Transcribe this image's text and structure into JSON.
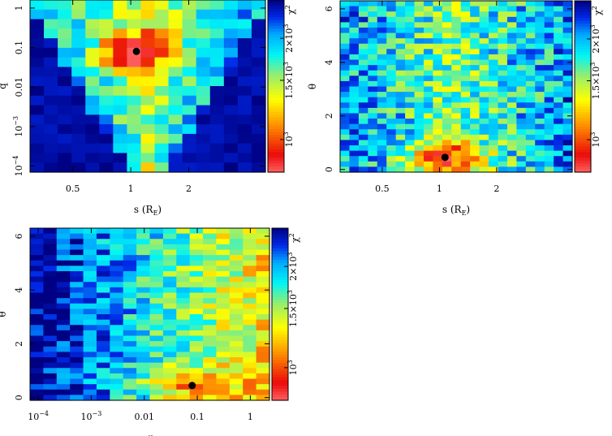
{
  "chart_data": [
    {
      "type": "heatmap",
      "title": "",
      "xlabel": "s (R_E)",
      "ylabel": "q",
      "x_scale": "log",
      "y_scale": "log",
      "xlim": [
        0.3,
        5.0
      ],
      "ylim": [
        7e-05,
        1.6
      ],
      "x_ticks": [
        {
          "v": 0.5,
          "label": "0.5"
        },
        {
          "v": 1,
          "label": "1"
        },
        {
          "v": 2,
          "label": "2"
        }
      ],
      "y_ticks": [
        {
          "v": 0.0001,
          "label": "10^-4"
        },
        {
          "v": 0.001,
          "label": "10^-3"
        },
        {
          "v": 0.01,
          "label": "0.01"
        },
        {
          "v": 0.1,
          "label": "0.1"
        },
        {
          "v": 1,
          "label": "1"
        }
      ],
      "colorbar": {
        "label": "χ²",
        "scale": "log",
        "range": [
          800,
          2600
        ],
        "ticks": [
          {
            "v": 1000,
            "label": "10^3"
          },
          {
            "v": 1500,
            "label": "1.5×10^3"
          },
          {
            "v": 2000,
            "label": "2×10^3"
          }
        ]
      },
      "best_fit": {
        "x": 1.07,
        "y": 0.08
      },
      "pattern": "v",
      "grid_size": [
        17,
        18
      ],
      "seed": 11
    },
    {
      "type": "heatmap",
      "title": "",
      "xlabel": "s (R_E)",
      "ylabel": "θ",
      "x_scale": "log",
      "y_scale": "linear",
      "xlim": [
        0.3,
        5.0
      ],
      "ylim": [
        -0.1,
        6.3
      ],
      "x_ticks": [
        {
          "v": 0.5,
          "label": "0.5"
        },
        {
          "v": 1,
          "label": "1"
        },
        {
          "v": 2,
          "label": "2"
        }
      ],
      "y_ticks": [
        {
          "v": 0,
          "label": "0"
        },
        {
          "v": 2,
          "label": "2"
        },
        {
          "v": 4,
          "label": "4"
        },
        {
          "v": 6,
          "label": "6"
        }
      ],
      "colorbar": {
        "label": "χ²",
        "scale": "log",
        "range": [
          800,
          2600
        ],
        "ticks": [
          {
            "v": 1000,
            "label": "10^3"
          },
          {
            "v": 1500,
            "label": "1.5×10^3"
          },
          {
            "v": 2000,
            "label": "2×10^3"
          }
        ]
      },
      "best_fit": {
        "x": 1.07,
        "y": 0.45
      },
      "pattern": "centercol",
      "grid_size": [
        25,
        32
      ],
      "seed": 23
    },
    {
      "type": "heatmap",
      "title": "",
      "xlabel": "q",
      "ylabel": "θ",
      "x_scale": "log",
      "y_scale": "linear",
      "xlim": [
        7e-05,
        2.3
      ],
      "ylim": [
        -0.1,
        6.3
      ],
      "x_ticks": [
        {
          "v": 0.0001,
          "label": "10^-4"
        },
        {
          "v": 0.001,
          "label": "10^-3"
        },
        {
          "v": 0.01,
          "label": "0.01"
        },
        {
          "v": 0.1,
          "label": "0.1"
        },
        {
          "v": 1,
          "label": "1"
        }
      ],
      "y_ticks": [
        {
          "v": 0,
          "label": "0"
        },
        {
          "v": 2,
          "label": "2"
        },
        {
          "v": 4,
          "label": "4"
        },
        {
          "v": 6,
          "label": "6"
        }
      ],
      "colorbar": {
        "label": "χ²",
        "scale": "log",
        "range": [
          800,
          2600
        ],
        "ticks": [
          {
            "v": 1000,
            "label": "10^3"
          },
          {
            "v": 1500,
            "label": "1.5×10^3"
          },
          {
            "v": 2000,
            "label": "2×10^3"
          }
        ]
      },
      "best_fit": {
        "x": 0.08,
        "y": 0.45
      },
      "pattern": "gradient",
      "grid_size": [
        18,
        32
      ],
      "seed": 37
    }
  ]
}
